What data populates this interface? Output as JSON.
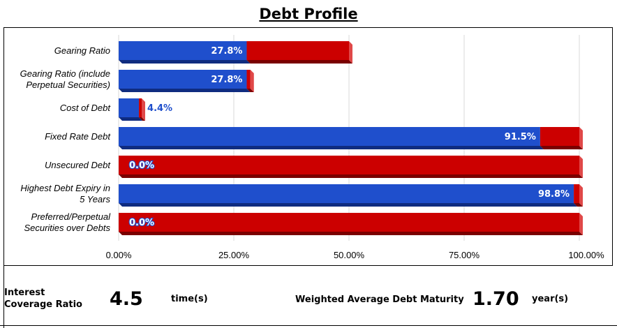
{
  "chart_data": {
    "type": "bar",
    "orientation": "horizontal",
    "stacked": true,
    "title": "Debt Profile",
    "categories": [
      "Gearing Ratio",
      "Gearing Ratio (include Perpetual Securities)",
      "Cost of Debt",
      "Fixed Rate Debt",
      "Unsecured Debt",
      "Highest Debt Expiry in 5 Years",
      "Preferred/Perpetual Securities over Debts"
    ],
    "category_lines": [
      [
        "Gearing Ratio"
      ],
      [
        "Gearing Ratio (include",
        "Perpetual Securities)"
      ],
      [
        "Cost of Debt"
      ],
      [
        "Fixed Rate Debt"
      ],
      [
        "Unsecured Debt"
      ],
      [
        "Highest Debt Expiry in",
        "5 Years"
      ],
      [
        "Preferred/Perpetual",
        "Securities over Debts"
      ]
    ],
    "series": [
      {
        "color": "#1f4fcc",
        "values": [
          27.8,
          27.8,
          4.4,
          91.5,
          0.0,
          98.8,
          0.0
        ]
      },
      {
        "color": "#cc0000",
        "values": [
          22.2,
          0.8,
          0.6,
          8.5,
          100.0,
          1.2,
          100.0
        ]
      }
    ],
    "data_labels": [
      "27.8%",
      "27.8%",
      "4.4%",
      "91.5%",
      "0.0%",
      "98.8%",
      "0.0%"
    ],
    "x_ticks": [
      0,
      25,
      50,
      75,
      100
    ],
    "x_tick_labels": [
      "0.00%",
      "25.00%",
      "50.00%",
      "75.00%",
      "100.00%"
    ],
    "xlim": [
      0,
      100
    ],
    "grid": true
  },
  "metrics": {
    "interest_label_line1": "Interest",
    "interest_label_line2": "Coverage Ratio",
    "interest_value": "4.5",
    "interest_unit": "time(s)",
    "wadm_label": "Weighted Average Debt Maturity",
    "wadm_value": "1.70",
    "wadm_unit": "year(s)"
  }
}
